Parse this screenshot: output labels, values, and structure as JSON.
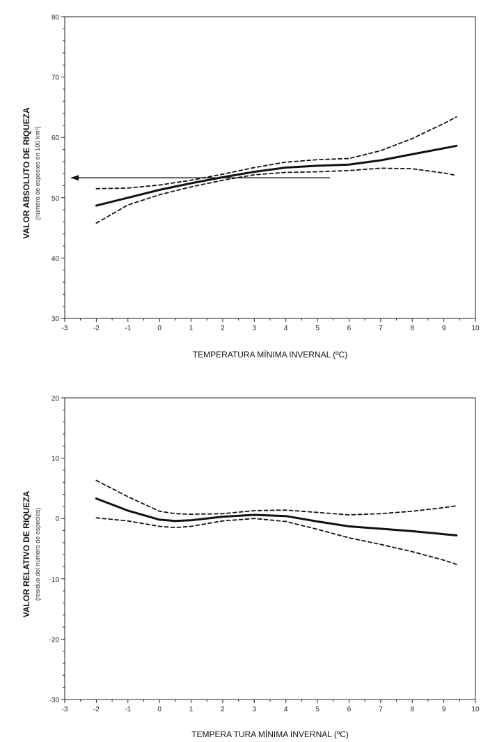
{
  "chart_data": [
    {
      "type": "line",
      "xlabel": "TEMPERATURA MÍNIMA INVERNAL (ºC)",
      "ylabel": "VALOR ABSOLUTO DE RIQUEZA",
      "ylabel_sub": "(número de especies en 100 km²)",
      "xlim": [
        -3,
        10
      ],
      "ylim": [
        30,
        80
      ],
      "xticks": [
        -3,
        -2,
        -1,
        0,
        1,
        2,
        3,
        4,
        5,
        6,
        7,
        8,
        9,
        10
      ],
      "yticks": [
        30,
        40,
        50,
        60,
        70,
        80
      ],
      "grid": false,
      "x": [
        -2,
        -1,
        0,
        1,
        2,
        3,
        4,
        5,
        6,
        7,
        8,
        9,
        9.4
      ],
      "series": [
        {
          "style": "solid",
          "values": [
            48.7,
            50.0,
            51.3,
            52.4,
            53.4,
            54.3,
            55.0,
            55.3,
            55.5,
            56.2,
            57.2,
            58.2,
            58.6
          ]
        },
        {
          "style": "dashed",
          "values": [
            51.5,
            51.6,
            52.1,
            52.9,
            53.9,
            55.0,
            55.9,
            56.3,
            56.5,
            57.8,
            59.8,
            62.3,
            63.4
          ]
        },
        {
          "style": "dashed",
          "values": [
            45.8,
            48.8,
            50.5,
            51.8,
            52.9,
            53.8,
            54.2,
            54.3,
            54.5,
            54.9,
            54.8,
            54.1,
            53.7
          ]
        }
      ],
      "annotations": [
        {
          "type": "arrow",
          "x_from": 5.4,
          "x_to": -2.8,
          "y": 53.3
        }
      ]
    },
    {
      "type": "line",
      "xlabel": "TEMPERA TURA MÍNIMA INVERNAL (ºC)",
      "ylabel": "VALOR RELATIVO DE RIQUEZA",
      "ylabel_sub": "(residuo del número de especies)",
      "xlim": [
        -3,
        10
      ],
      "ylim": [
        -30,
        20
      ],
      "xticks": [
        -3,
        -2,
        -1,
        0,
        1,
        2,
        3,
        4,
        5,
        6,
        7,
        8,
        9,
        10
      ],
      "yticks": [
        -30,
        -20,
        -10,
        0,
        10,
        20
      ],
      "grid": false,
      "x": [
        -2,
        -1,
        0,
        0.5,
        1,
        2,
        3,
        4,
        5,
        6,
        7,
        8,
        9,
        9.4
      ],
      "series": [
        {
          "style": "solid",
          "values": [
            3.3,
            1.3,
            -0.2,
            -0.4,
            -0.3,
            0.3,
            0.6,
            0.4,
            -0.5,
            -1.3,
            -1.7,
            -2.1,
            -2.6,
            -2.8
          ]
        },
        {
          "style": "dashed",
          "values": [
            6.3,
            3.6,
            1.2,
            0.8,
            0.7,
            0.8,
            1.3,
            1.4,
            1.0,
            0.6,
            0.8,
            1.2,
            1.8,
            2.1
          ]
        },
        {
          "style": "dashed",
          "values": [
            0.1,
            -0.4,
            -1.3,
            -1.5,
            -1.3,
            -0.4,
            0.0,
            -0.5,
            -1.8,
            -3.2,
            -4.3,
            -5.5,
            -6.9,
            -7.6
          ]
        }
      ]
    }
  ]
}
